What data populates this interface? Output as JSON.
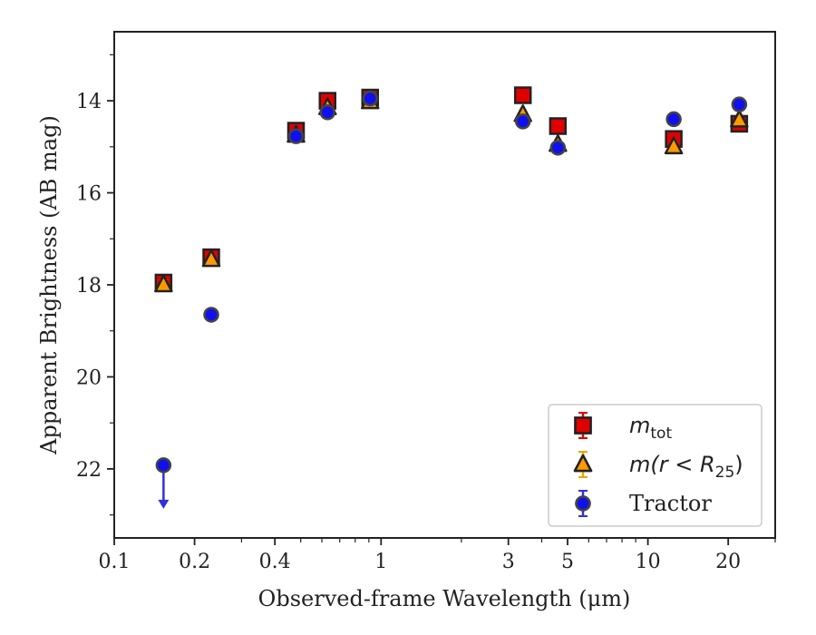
{
  "chart_data": {
    "type": "scatter",
    "xlabel": "Observed-frame Wavelength (μm)",
    "ylabel": "Apparent Brightness (AB mag)",
    "x_scale": "log",
    "xlim": [
      0.1,
      30
    ],
    "ylim": [
      23.5,
      12.5
    ],
    "y_inverted": true,
    "x_ticks": [
      {
        "value": 0.1,
        "label": "0.1"
      },
      {
        "value": 0.2,
        "label": "0.2"
      },
      {
        "value": 0.4,
        "label": "0.4"
      },
      {
        "value": 1,
        "label": "1"
      },
      {
        "value": 3,
        "label": "3"
      },
      {
        "value": 5,
        "label": "5"
      },
      {
        "value": 10,
        "label": "10"
      },
      {
        "value": 20,
        "label": "20"
      }
    ],
    "y_ticks": [
      {
        "value": 14,
        "label": "14"
      },
      {
        "value": 16,
        "label": "16"
      },
      {
        "value": 18,
        "label": "18"
      },
      {
        "value": 20,
        "label": "20"
      },
      {
        "value": 22,
        "label": "22"
      }
    ],
    "grid": false,
    "legend_position": "lower-right",
    "series": [
      {
        "name": "m_tot",
        "marker": "square",
        "color": "#e00000",
        "error_color": "#e00000",
        "points": [
          {
            "x": 0.153,
            "y": 17.95
          },
          {
            "x": 0.231,
            "y": 17.4
          },
          {
            "x": 0.48,
            "y": 14.65
          },
          {
            "x": 0.63,
            "y": 14.0
          },
          {
            "x": 0.91,
            "y": 13.93
          },
          {
            "x": 3.4,
            "y": 13.88
          },
          {
            "x": 4.6,
            "y": 14.55
          },
          {
            "x": 12.5,
            "y": 14.83
          },
          {
            "x": 22.0,
            "y": 14.5
          }
        ]
      },
      {
        "name": "m(r<R25)",
        "marker": "triangle",
        "color": "#ff9900",
        "error_color": "#e8a800",
        "points": [
          {
            "x": 0.153,
            "y": 18.0
          },
          {
            "x": 0.231,
            "y": 17.45
          },
          {
            "x": 0.48,
            "y": 14.75
          },
          {
            "x": 0.63,
            "y": 14.15
          },
          {
            "x": 0.91,
            "y": 14.02
          },
          {
            "x": 3.4,
            "y": 14.3
          },
          {
            "x": 4.6,
            "y": 14.95
          },
          {
            "x": 12.5,
            "y": 15.0
          },
          {
            "x": 22.0,
            "y": 14.42
          }
        ]
      },
      {
        "name": "Tractor",
        "marker": "circle",
        "color": "#1010ee",
        "error_color": "#3030dd",
        "points": [
          {
            "x": 0.153,
            "y": 21.92,
            "upper_limit": true
          },
          {
            "x": 0.231,
            "y": 18.65
          },
          {
            "x": 0.48,
            "y": 14.77
          },
          {
            "x": 0.63,
            "y": 14.25
          },
          {
            "x": 0.91,
            "y": 13.95
          },
          {
            "x": 3.4,
            "y": 14.45
          },
          {
            "x": 4.6,
            "y": 15.02
          },
          {
            "x": 12.5,
            "y": 14.4
          },
          {
            "x": 22.0,
            "y": 14.08
          }
        ]
      }
    ]
  },
  "legend": {
    "items": [
      {
        "marker": "square",
        "color": "#e00000",
        "error_color": "#e00000",
        "base": "m",
        "sub": "tot",
        "label": "m_tot"
      },
      {
        "marker": "triangle",
        "color": "#ff9900",
        "error_color": "#e8a800",
        "math_text": "m(r < R",
        "sub": "25",
        "tail": ")",
        "label": "m(r<R25)"
      },
      {
        "marker": "circle",
        "color": "#1010ee",
        "error_color": "#3030dd",
        "text": "Tractor",
        "label": "Tractor"
      }
    ]
  }
}
